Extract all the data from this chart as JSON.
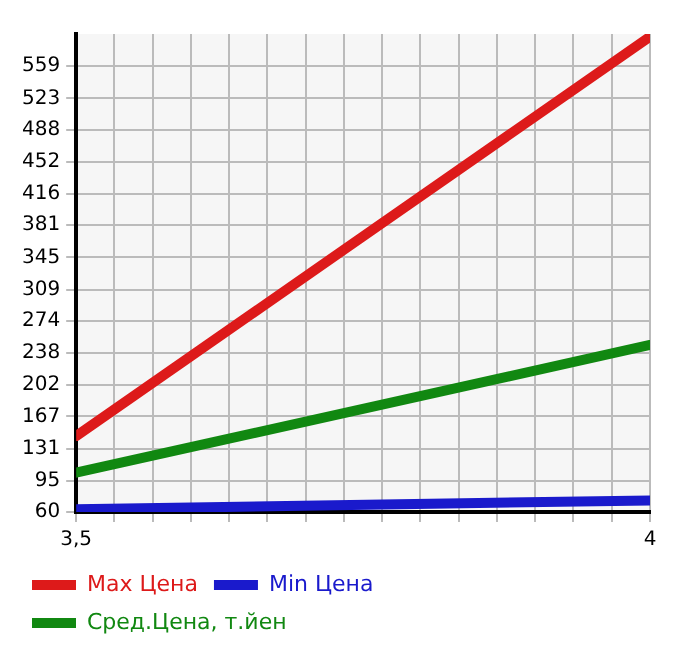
{
  "chart_data": {
    "type": "line",
    "x": [
      3.5,
      4
    ],
    "series": [
      {
        "name": "Max Цена",
        "color": "#dd1a1a",
        "values": [
          145,
          592
        ]
      },
      {
        "name": "Min Цена",
        "color": "#1a1acc",
        "values": [
          63,
          73
        ]
      },
      {
        "name": "Сред.Цена, т.йен",
        "color": "#118811",
        "values": [
          104,
          247
        ]
      }
    ],
    "xlim": [
      3.5,
      4
    ],
    "xticks": [
      {
        "value": 3.5,
        "label": "3,5"
      },
      {
        "value": 3.5333,
        "label": null
      },
      {
        "value": 3.5667,
        "label": null
      },
      {
        "value": 3.6,
        "label": null
      },
      {
        "value": 3.6333,
        "label": null
      },
      {
        "value": 3.6667,
        "label": null
      },
      {
        "value": 3.7,
        "label": null
      },
      {
        "value": 3.7333,
        "label": null
      },
      {
        "value": 3.7667,
        "label": null
      },
      {
        "value": 3.8,
        "label": null
      },
      {
        "value": 3.8333,
        "label": null
      },
      {
        "value": 3.8667,
        "label": null
      },
      {
        "value": 3.9,
        "label": null
      },
      {
        "value": 3.9333,
        "label": null
      },
      {
        "value": 3.9667,
        "label": null
      },
      {
        "value": 4,
        "label": "4"
      }
    ],
    "ylim": [
      60,
      595
    ],
    "yticks": [
      60,
      95,
      131,
      167,
      202,
      238,
      274,
      309,
      345,
      381,
      416,
      452,
      488,
      523,
      559
    ],
    "grid": true,
    "legend": "bottom",
    "marker": "none",
    "line_style": "solid"
  }
}
